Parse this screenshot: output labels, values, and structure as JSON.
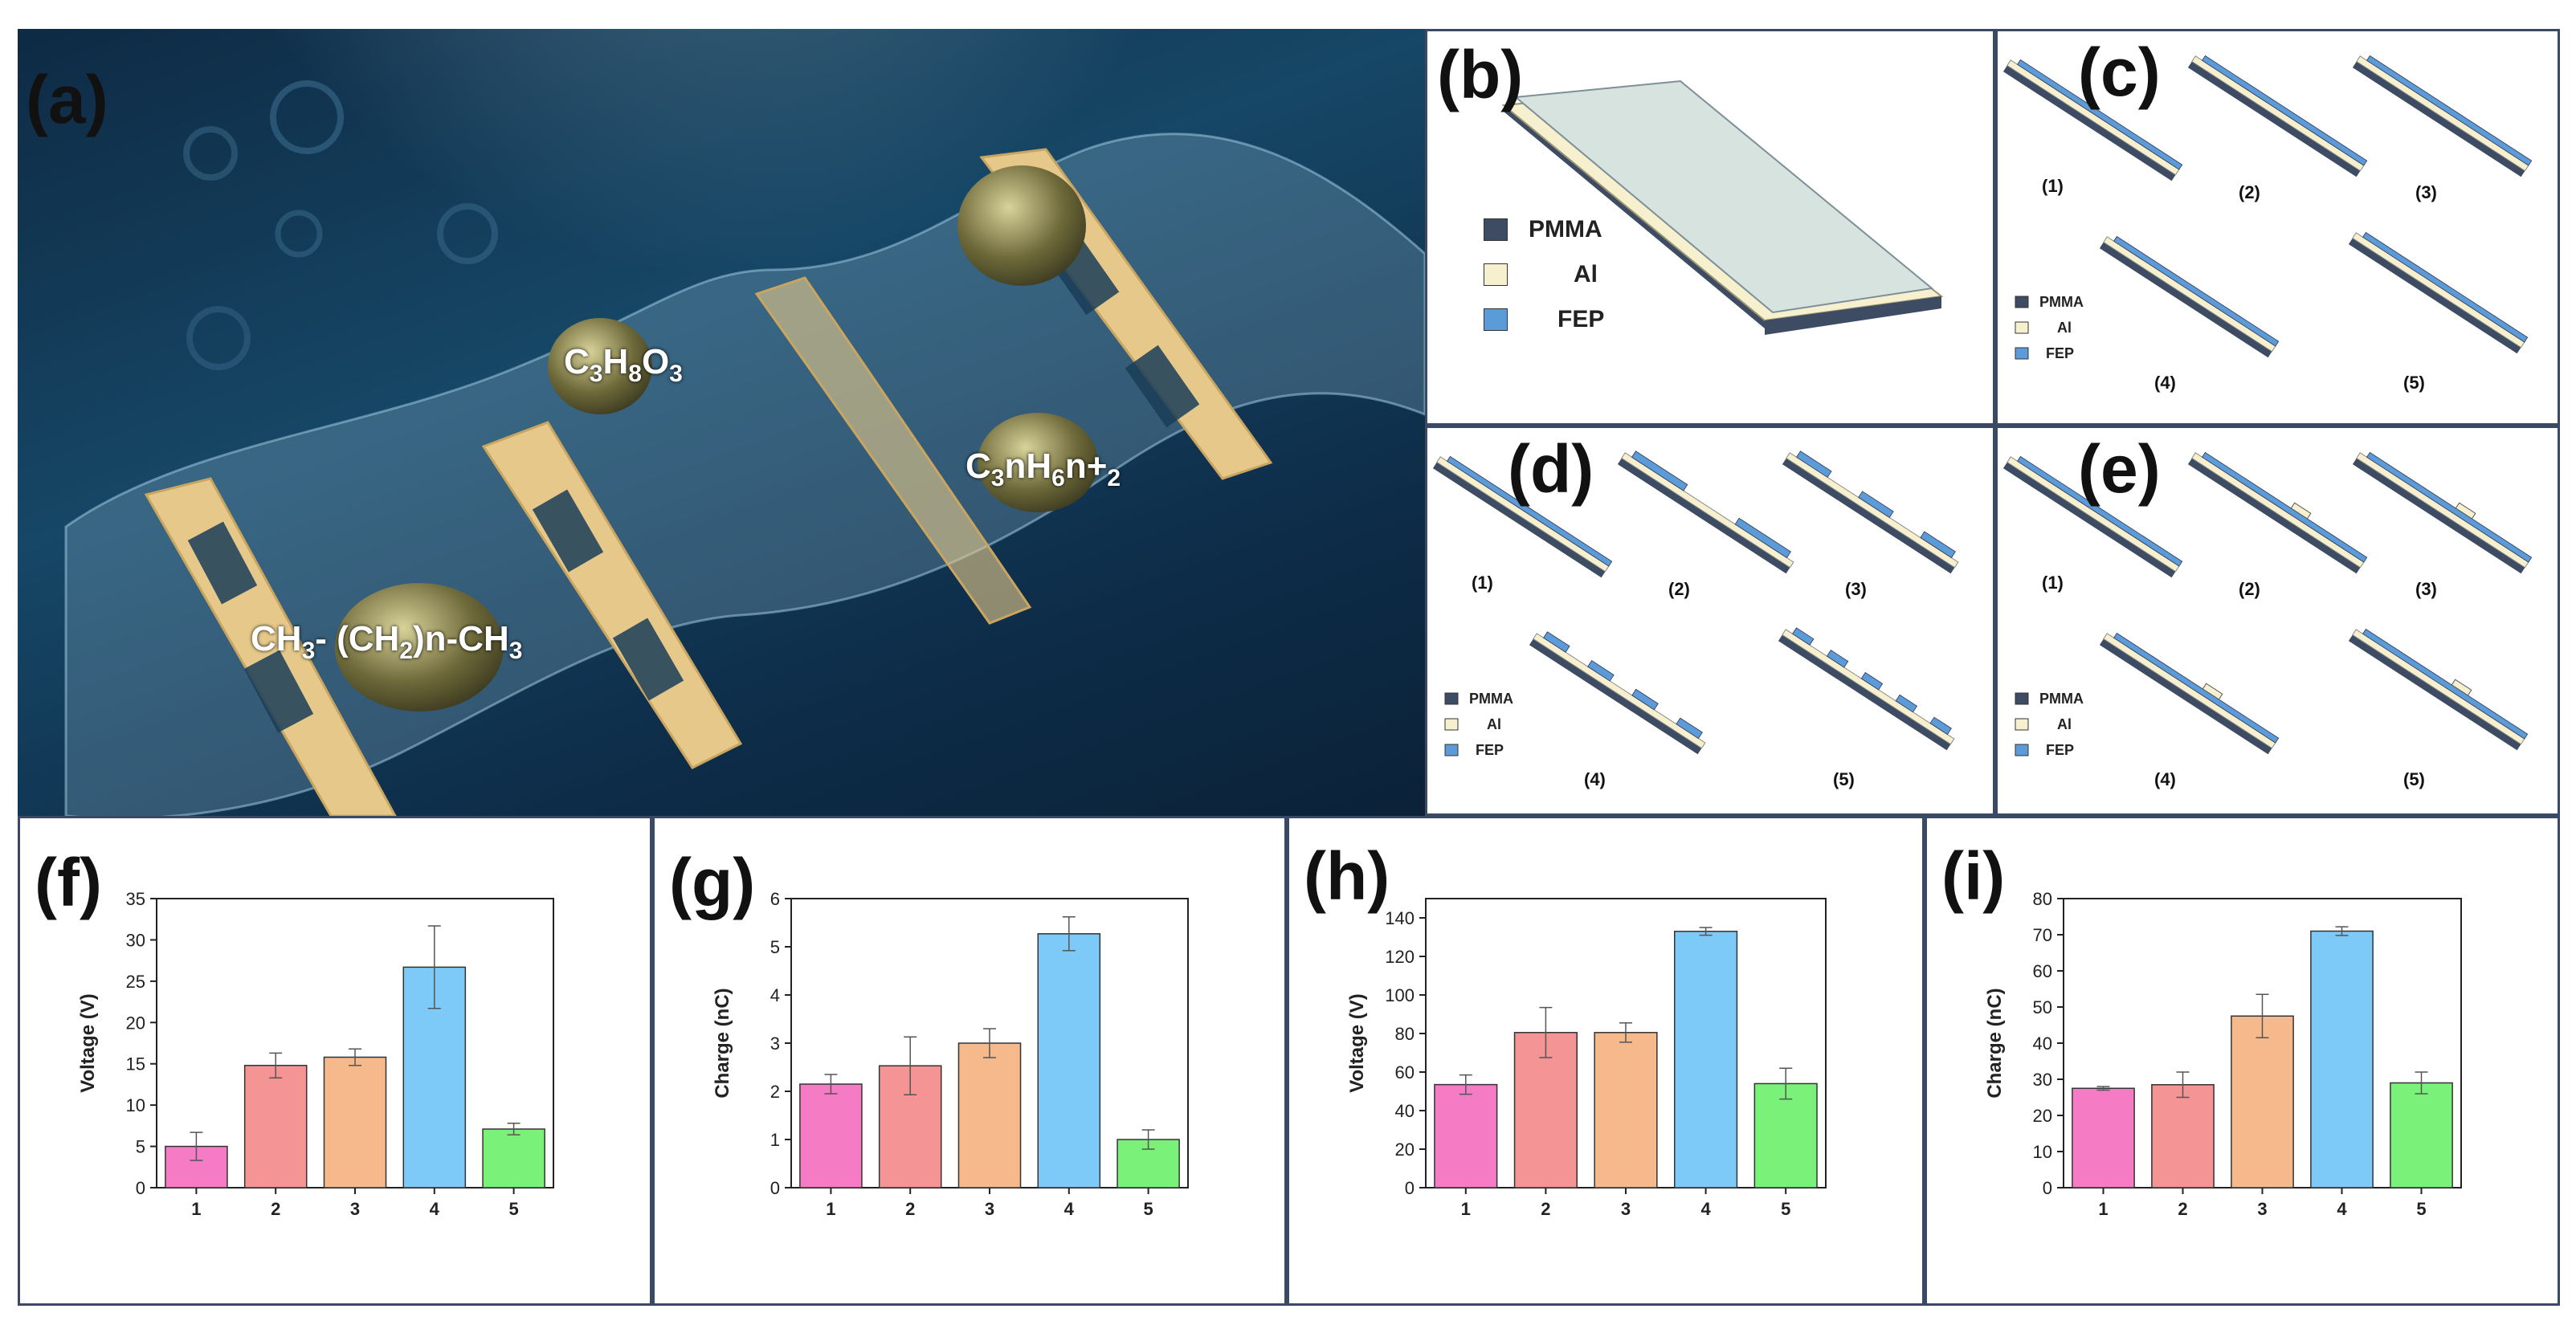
{
  "panels": {
    "a": {
      "label": "(a)",
      "molecules": {
        "glycerol": {
          "main": "C",
          "s1": "3",
          "m2": "H",
          "s2": "8",
          "m3": "O",
          "s3": "3"
        },
        "alkane_left": {
          "p1": "CH",
          "s1": "3",
          "p2": "- (CH",
          "s2": "2",
          "p3": ")n-CH",
          "s3": "3"
        },
        "alkane_right": {
          "p1": "C",
          "s1": "3",
          "p2": "nH",
          "s2": "6",
          "p3": "n+",
          "s3": "2"
        }
      }
    },
    "b": {
      "label": "(b)",
      "legend": [
        "PMMA",
        "Al",
        "FEP"
      ]
    },
    "c": {
      "label": "(c)",
      "legend": [
        "PMMA",
        "Al",
        "FEP"
      ],
      "items": [
        "(1)",
        "(2)",
        "(3)",
        "(4)",
        "(5)"
      ]
    },
    "d": {
      "label": "(d)",
      "legend": [
        "PMMA",
        "Al",
        "FEP"
      ],
      "items": [
        "(1)",
        "(2)",
        "(3)",
        "(4)",
        "(5)"
      ]
    },
    "e": {
      "label": "(e)",
      "legend": [
        "PMMA",
        "Al",
        "FEP"
      ],
      "items": [
        "(1)",
        "(2)",
        "(3)",
        "(4)",
        "(5)"
      ]
    },
    "f": {
      "label": "(f)"
    },
    "g": {
      "label": "(g)"
    },
    "h": {
      "label": "(h)"
    },
    "i": {
      "label": "(i)"
    }
  },
  "colors": {
    "pmma": "#3d4b63",
    "al": "#f7f0cf",
    "fep": "#5b9bd8",
    "bars": [
      "#f57bc5",
      "#f59494",
      "#f5b98c",
      "#7dc9f7",
      "#7af27a"
    ]
  },
  "chart_data": [
    {
      "id": "f",
      "type": "bar",
      "categories": [
        "1",
        "2",
        "3",
        "4",
        "5"
      ],
      "values": [
        5.0,
        14.8,
        15.8,
        26.7,
        7.1
      ],
      "errors": [
        1.7,
        1.5,
        1.0,
        5.0,
        0.7
      ],
      "ylabel": "Voltage (V)",
      "ylim": [
        0,
        35
      ],
      "yticks": [
        "0",
        "5",
        "10",
        "15",
        "20",
        "25",
        "30",
        "35"
      ]
    },
    {
      "id": "g",
      "type": "bar",
      "categories": [
        "1",
        "2",
        "3",
        "4",
        "5"
      ],
      "values": [
        2.15,
        2.53,
        3.0,
        5.27,
        1.0
      ],
      "errors": [
        0.2,
        0.6,
        0.3,
        0.35,
        0.2
      ],
      "ylabel": "Charge (nC)",
      "ylim": [
        0,
        6
      ],
      "yticks": [
        "0",
        "1",
        "2",
        "3",
        "4",
        "5",
        "6"
      ]
    },
    {
      "id": "h",
      "type": "bar",
      "categories": [
        "1",
        "2",
        "3",
        "4",
        "5"
      ],
      "values": [
        53.5,
        80.5,
        80.5,
        133,
        54
      ],
      "errors": [
        5,
        13,
        5,
        2,
        8
      ],
      "ylabel": "Voltage (V)",
      "ylim": [
        0,
        150
      ],
      "yticks": [
        "0",
        "20",
        "40",
        "60",
        "80",
        "100",
        "120",
        "140"
      ]
    },
    {
      "id": "i",
      "type": "bar",
      "categories": [
        "1",
        "2",
        "3",
        "4",
        "5"
      ],
      "values": [
        27.5,
        28.5,
        47.5,
        71,
        29
      ],
      "errors": [
        0.5,
        3.5,
        6,
        1.2,
        3
      ],
      "ylabel": "Charge (nC)",
      "ylim": [
        0,
        80
      ],
      "yticks": [
        "0",
        "10",
        "20",
        "30",
        "40",
        "50",
        "60",
        "70",
        "80"
      ]
    }
  ]
}
